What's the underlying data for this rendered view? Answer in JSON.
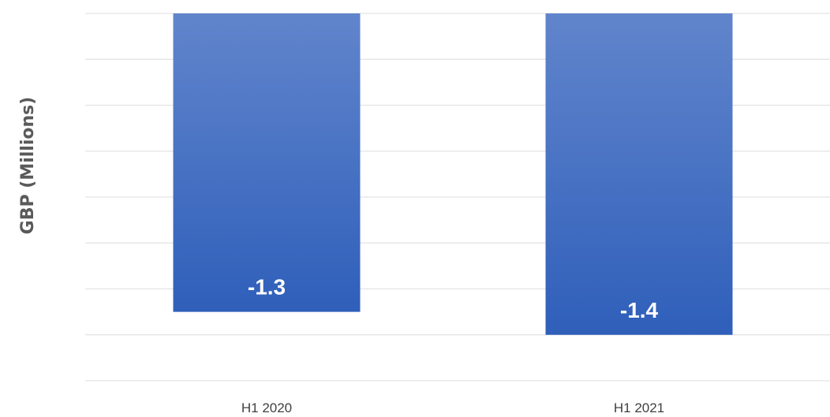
{
  "chart_data": {
    "type": "bar",
    "categories": [
      "H1 2020",
      "H1 2021"
    ],
    "values": [
      -1.3,
      -1.4
    ],
    "data_labels": [
      "-1.3",
      "-1.4"
    ],
    "ylabel": "GBP (Millions)",
    "ylim": [
      -1.6,
      0
    ],
    "grid": true,
    "bar_color_top": "#6185cc",
    "bar_color_bottom": "#2f5fba"
  }
}
